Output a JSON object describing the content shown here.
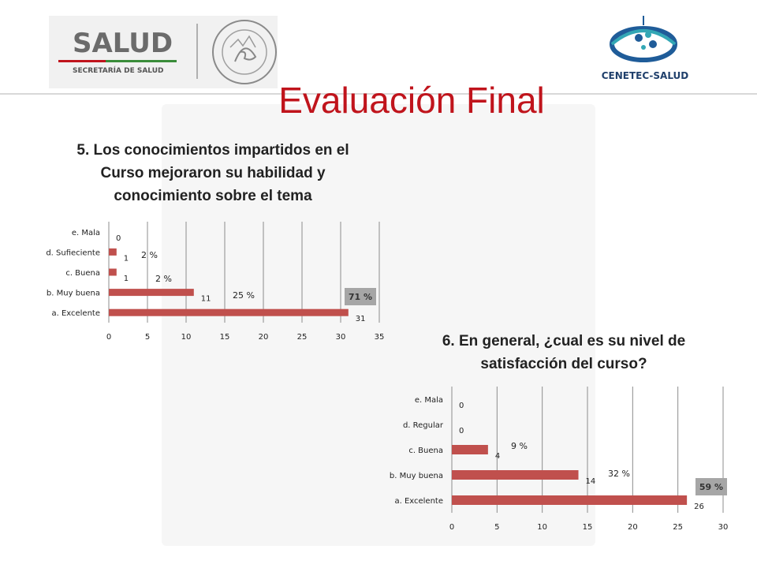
{
  "header": {
    "left_logo": {
      "main": "SALUD",
      "sub": "SECRETARÍA DE SALUD",
      "seal_text": "ESTADOS UNIDOS MEXICANOS"
    },
    "right_logo": {
      "text": "CENETEC-SALUD"
    }
  },
  "slide_title": "Evaluación Final",
  "colors": {
    "title": "#c0141c",
    "bar": "#c0504d",
    "percent_box": "#a6a6a6",
    "grid": "#8c8c8c"
  },
  "chart_data": [
    {
      "type": "bar",
      "orientation": "horizontal",
      "title": "5. Los conocimientos impartidos en el Curso mejoraron su habilidad y conocimiento sobre el tema",
      "categories": [
        "a. Excelente",
        "b. Muy buena",
        "c. Buena",
        "d. Sufieciente",
        "e. Mala"
      ],
      "values": [
        31,
        11,
        1,
        1,
        0
      ],
      "percent_labels": [
        "71 %",
        "25 %",
        "2 %",
        "2 %",
        ""
      ],
      "xlim": [
        0,
        35
      ],
      "xticks": [
        0,
        5,
        10,
        15,
        20,
        25,
        30,
        35
      ],
      "grid": true
    },
    {
      "type": "bar",
      "orientation": "horizontal",
      "title": "6. En general, ¿cual es su nivel de satisfacción del curso?",
      "categories": [
        "a. Excelente",
        "b. Muy buena",
        "c. Buena",
        "d. Regular",
        "e. Mala"
      ],
      "values": [
        26,
        14,
        4,
        0,
        0
      ],
      "percent_labels": [
        "59 %",
        "32 %",
        "9 %",
        "",
        ""
      ],
      "xlim": [
        0,
        30
      ],
      "xticks": [
        0,
        5,
        10,
        15,
        20,
        25,
        30
      ],
      "grid": true
    }
  ]
}
